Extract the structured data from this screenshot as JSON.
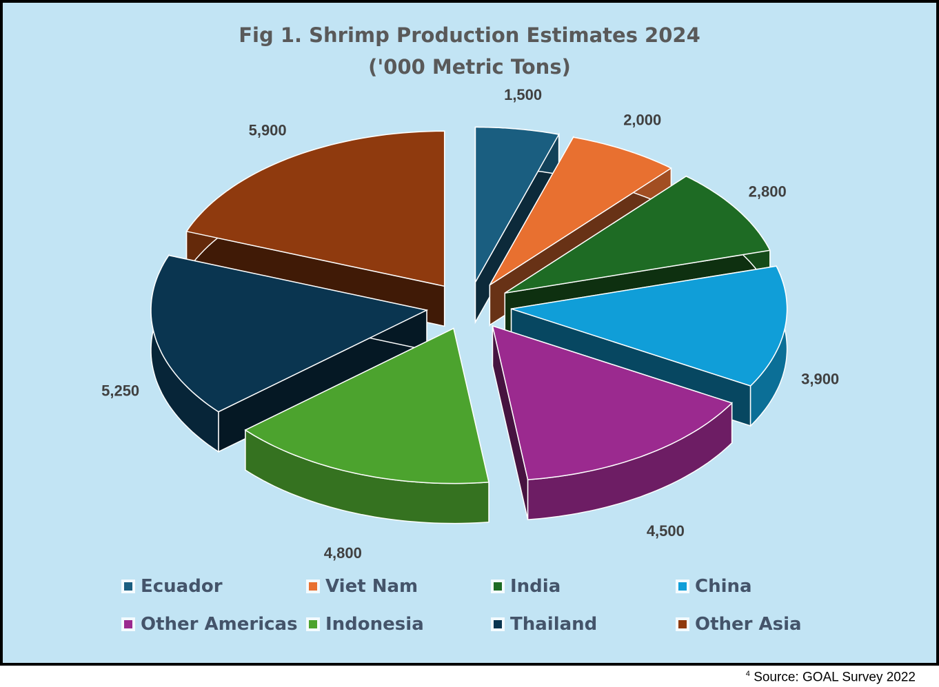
{
  "chart_data": {
    "type": "pie",
    "style": "3d-exploded",
    "title": "Fig 1. Shrimp Production Estimates 2024",
    "subtitle": "('000 Metric Tons)",
    "categories": [
      "Ecuador",
      "Viet Nam",
      "India",
      "China",
      "Other Americas",
      "Indonesia",
      "Thailand",
      "Other Asia"
    ],
    "values": [
      1500,
      2000,
      2800,
      3900,
      4500,
      4800,
      5250,
      5900
    ],
    "data_labels": [
      "1,500",
      "2,000",
      "2,800",
      "3,900",
      "4,500",
      "4,800",
      "5,250",
      "5,900"
    ],
    "colors": [
      "#1a5e80",
      "#e87030",
      "#1e6b24",
      "#109ed8",
      "#9b2a8f",
      "#4ca32e",
      "#0a3550",
      "#8f3a0e"
    ],
    "legend_position": "bottom"
  },
  "footnote": {
    "marker": "4",
    "text": "Source: GOAL Survey 2022"
  }
}
